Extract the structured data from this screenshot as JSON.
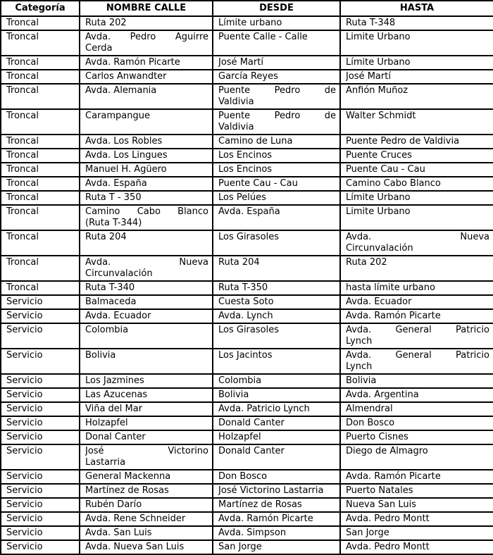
{
  "table": {
    "headers": [
      "Categoría",
      "NOMBRE CALLE",
      "DESDE",
      "HASTA"
    ],
    "columns": [
      "categoria",
      "nombre_calle",
      "desde",
      "hasta"
    ],
    "border_color": "#000000",
    "background_color": "#ffffff",
    "rows": [
      [
        "Troncal",
        "Ruta 202",
        "Límite urbano",
        "Ruta T-348"
      ],
      [
        "Troncal",
        "Avda. Pedro Aguirre\nCerda",
        "Puente Calle - Calle",
        "Limite Urbano"
      ],
      [
        "Troncal",
        "Avda. Ramón Picarte",
        "José Martí",
        "Límite Urbano"
      ],
      [
        "Troncal",
        "Carlos Anwandter",
        "García Reyes",
        "José Martí"
      ],
      [
        "Troncal",
        "Avda. Alemania",
        "Puente Pedro de\nValdivia",
        "Anfión Muñoz"
      ],
      [
        "Troncal",
        "Carampangue",
        "Puente Pedro de\nValdivia",
        "Walter Schmidt"
      ],
      [
        "Troncal",
        "Avda. Los Robles",
        "Camino de Luna",
        "Puente Pedro de Valdivia"
      ],
      [
        "Troncal",
        "Avda. Los Lingues",
        "Los Encinos",
        "Puente Cruces"
      ],
      [
        "Troncal",
        "Manuel H. Agüero",
        "Los Encinos",
        "Puente Cau - Cau"
      ],
      [
        "Troncal",
        "Avda. España",
        "Puente Cau - Cau",
        "Camino Cabo Blanco"
      ],
      [
        "Troncal",
        "Ruta T - 350",
        "Los Pelúes",
        "Límite Urbano"
      ],
      [
        "Troncal",
        "Camino Cabo Blanco\n(Ruta T-344)",
        "Avda. España",
        "Limite Urbano"
      ],
      [
        "Troncal",
        "Ruta 204",
        "Los Girasoles",
        "Avda. Nueva\nCircunvalación"
      ],
      [
        "Troncal",
        "Avda. Nueva\nCircunvalación",
        "Ruta 204",
        "Ruta 202"
      ],
      [
        "Troncal",
        "Ruta T-340",
        "Ruta T-350",
        "hasta límite urbano"
      ],
      [
        "Servicio",
        "Balmaceda",
        "Cuesta Soto",
        "Avda. Ecuador"
      ],
      [
        "Servicio",
        "Avda. Ecuador",
        "Avda. Lynch",
        "Avda. Ramón Picarte"
      ],
      [
        "Servicio",
        "Colombia",
        "Los Girasoles",
        "Avda. General Patricio\nLynch"
      ],
      [
        "Servicio",
        "Bolivia",
        "Los Jacintos",
        "Avda. General Patricio\nLynch"
      ],
      [
        "Servicio",
        "Los Jazmines",
        "Colombia",
        "Bolivia"
      ],
      [
        "Servicio",
        "Las Azucenas",
        "Bolivia",
        "Avda. Argentina"
      ],
      [
        "Servicio",
        "Viña del Mar",
        "Avda. Patricio Lynch",
        "Almendral"
      ],
      [
        "Servicio",
        "Holzapfel",
        "Donald Canter",
        "Don Bosco"
      ],
      [
        "Servicio",
        "Donal Canter",
        "Holzapfel",
        "Puerto Cisnes"
      ],
      [
        "Servicio",
        "José Victorino\nLastarria",
        "Donald Canter",
        "Diego de Almagro"
      ],
      [
        "Servicio",
        "General Mackenna",
        "Don Bosco",
        "Avda. Ramón Picarte"
      ],
      [
        "Servicio",
        "Martínez de Rosas",
        "José Victorino Lastarria",
        "Puerto Natales"
      ],
      [
        "Servicio",
        "Rubén Darío",
        "Martínez de Rosas",
        "Nueva San Luis"
      ],
      [
        "Servicio",
        "Avda. Rene Schneider",
        "Avda. Ramón Picarte",
        "Avda. Pedro Montt"
      ],
      [
        "Servicio",
        "Avda. San Luis",
        "Avda. Simpson",
        "San Jorge"
      ],
      [
        "Servicio",
        "Avda. Nueva San Luis",
        "San Jorge",
        "Avda. Pedro Montt"
      ]
    ]
  }
}
